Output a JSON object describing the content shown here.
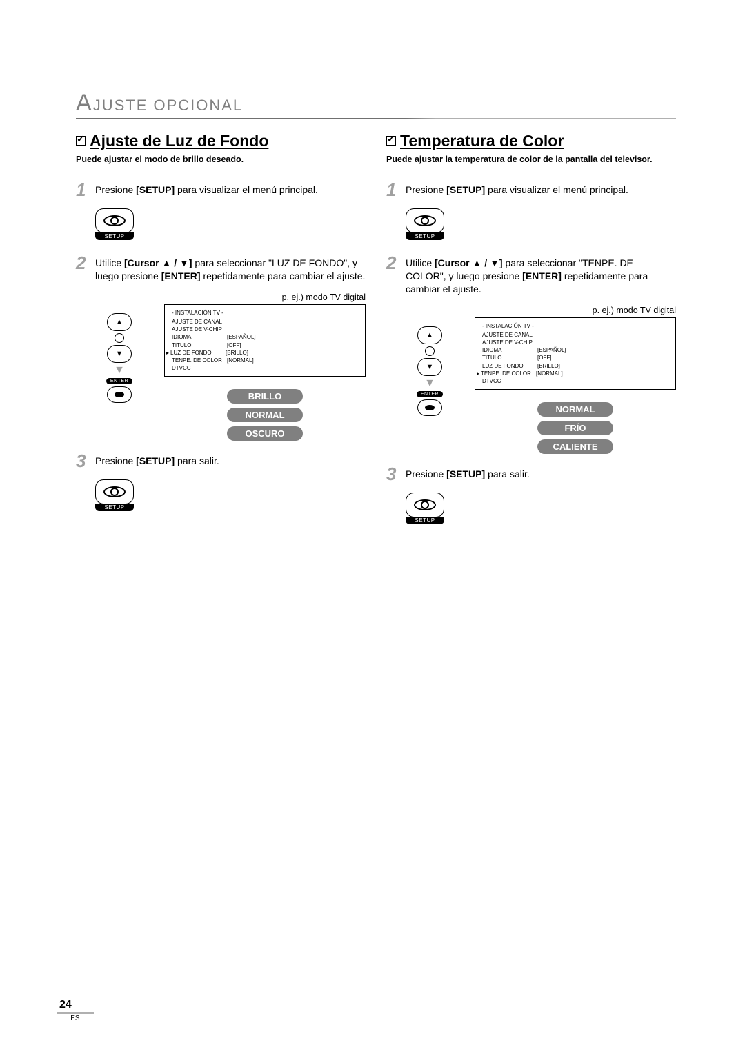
{
  "header": {
    "big_letter": "A",
    "rest": "JUSTE OPCIONAL"
  },
  "page": {
    "number": "24",
    "lang": "ES"
  },
  "setup_label": "SETUP",
  "enter_label": "ENTER",
  "example_caption": "p. ej.) modo TV digital",
  "menu": {
    "header": "- INSTALACIÓN TV -",
    "rows": [
      {
        "label": "AJUSTE DE CANAL",
        "val": ""
      },
      {
        "label": "AJUSTE DE V-CHIP",
        "val": ""
      },
      {
        "label": "IDIOMA",
        "val": "[ESPAÑOL]"
      },
      {
        "label": "TITULO",
        "val": "[OFF]"
      },
      {
        "label": "LUZ DE FONDO",
        "val": "[BRILLO]"
      },
      {
        "label": "TENPE. DE COLOR",
        "val": "[NORMAL]"
      },
      {
        "label": "DTVCC",
        "val": ""
      }
    ]
  },
  "left": {
    "title": "Ajuste de Luz de Fondo",
    "subtitle": "Puede ajustar el modo de brillo deseado.",
    "step1_before": "Presione ",
    "step1_bold": "[SETUP]",
    "step1_after": " para visualizar el menú principal.",
    "step2_full": "Utilice [Cursor ▲ / ▼] para seleccionar \"LUZ DE FONDO\", y luego presione [ENTER] repetidamente para cambiar el ajuste.",
    "step2_a": "Utilice ",
    "step2_b": "[Cursor ▲ / ▼]",
    "step2_c": " para seleccionar \"LUZ DE FONDO\", y luego presione ",
    "step2_d": "[ENTER]",
    "step2_e": " repetidamente para cambiar el ajuste.",
    "selected_index": 4,
    "pills": [
      "BRILLO",
      "NORMAL",
      "OSCURO"
    ],
    "step3_before": "Presione ",
    "step3_bold": "[SETUP]",
    "step3_after": " para salir."
  },
  "right": {
    "title": "Temperatura de Color",
    "subtitle": "Puede ajustar la temperatura de color de la pantalla del televisor.",
    "step1_before": "Presione ",
    "step1_bold": "[SETUP]",
    "step1_after": " para visualizar el menú principal.",
    "step2_a": "Utilice ",
    "step2_b": "[Cursor ▲ / ▼]",
    "step2_c": " para seleccionar \"TENPE. DE COLOR\", y luego presione ",
    "step2_d": "[ENTER]",
    "step2_e": " repetidamente para cambiar el ajuste.",
    "selected_index": 5,
    "pills": [
      "NORMAL",
      "FRÍO",
      "CALIENTE"
    ],
    "step3_before": "Presione ",
    "step3_bold": "[SETUP]",
    "step3_after": " para salir."
  }
}
